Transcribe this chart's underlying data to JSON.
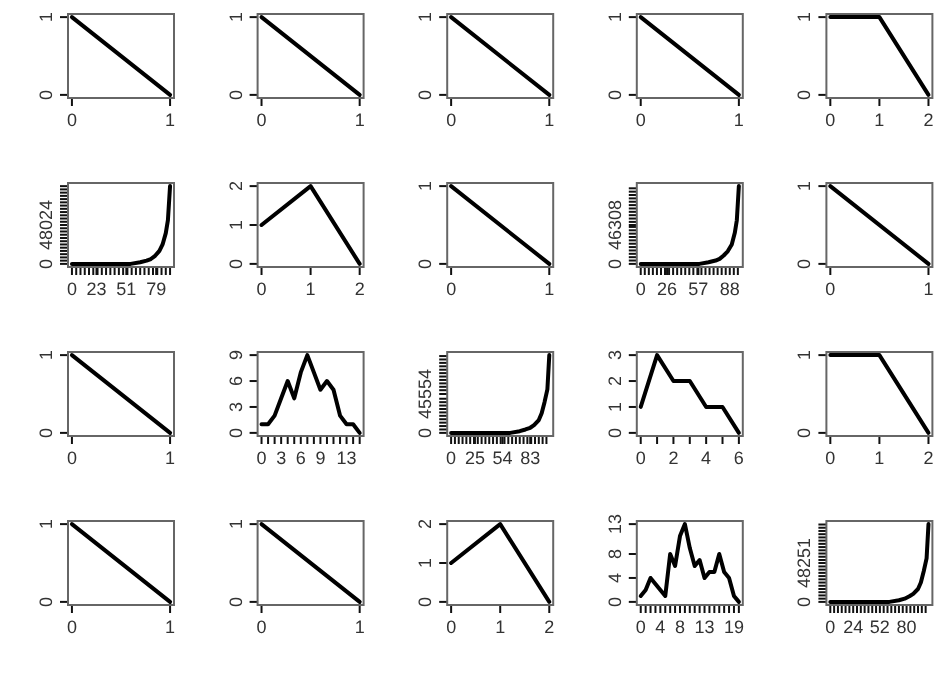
{
  "chart_data": [
    {
      "type": "line",
      "x": [
        0,
        1
      ],
      "values": [
        1,
        0
      ],
      "color": "#000000",
      "xlim": [
        -0.04,
        1.04
      ],
      "ylim": [
        -0.04,
        1.04
      ],
      "xticks": [
        0,
        1
      ],
      "yticks": [
        0,
        1
      ]
    },
    {
      "type": "line",
      "x": [
        0,
        1
      ],
      "values": [
        1,
        0
      ],
      "color": "#000000",
      "xlim": [
        -0.04,
        1.04
      ],
      "ylim": [
        -0.04,
        1.04
      ],
      "xticks": [
        0,
        1
      ],
      "yticks": [
        0,
        1
      ]
    },
    {
      "type": "line",
      "x": [
        0,
        1
      ],
      "values": [
        1,
        0
      ],
      "color": "#000000",
      "xlim": [
        -0.04,
        1.04
      ],
      "ylim": [
        -0.04,
        1.04
      ],
      "xticks": [
        0,
        1
      ],
      "yticks": [
        0,
        1
      ]
    },
    {
      "type": "line",
      "x": [
        0,
        1
      ],
      "values": [
        1,
        0
      ],
      "color": "#000000",
      "xlim": [
        -0.04,
        1.04
      ],
      "ylim": [
        -0.04,
        1.04
      ],
      "xticks": [
        0,
        1
      ],
      "yticks": [
        0,
        1
      ]
    },
    {
      "type": "line",
      "x": [
        0,
        1,
        2
      ],
      "values": [
        1,
        1,
        0
      ],
      "color": "#000000",
      "xlim": [
        -0.08,
        2.08
      ],
      "ylim": [
        -0.04,
        1.04
      ],
      "xticks": [
        0,
        1,
        2
      ],
      "yticks": [
        0,
        1
      ]
    },
    {
      "type": "line",
      "x": [
        0,
        46,
        55,
        64,
        70,
        74,
        78,
        82,
        85,
        88,
        90,
        92
      ],
      "values": [
        0,
        0,
        0,
        2000,
        4000,
        6000,
        10000,
        16000,
        24000,
        38000,
        54000,
        96048
      ],
      "color": "#000000",
      "xlim": [
        -3.7,
        95.7
      ],
      "ylim": [
        -3842,
        99890
      ],
      "xticks": [
        0,
        {
          "value": 4,
          "label": null
        },
        {
          "value": 8,
          "label": null
        },
        {
          "value": 12,
          "label": null
        },
        {
          "value": 16,
          "label": null
        },
        {
          "value": 20,
          "label": null
        },
        23,
        {
          "value": 24,
          "label": null
        },
        {
          "value": 28,
          "label": null
        },
        {
          "value": 32,
          "label": null
        },
        {
          "value": 36,
          "label": null
        },
        {
          "value": 40,
          "label": null
        },
        {
          "value": 44,
          "label": null
        },
        {
          "value": 48,
          "label": null
        },
        51,
        {
          "value": 52,
          "label": null
        },
        {
          "value": 56,
          "label": null
        },
        {
          "value": 60,
          "label": null
        },
        {
          "value": 64,
          "label": null
        },
        {
          "value": 68,
          "label": null
        },
        {
          "value": 72,
          "label": null
        },
        {
          "value": 76,
          "label": null
        },
        79,
        {
          "value": 80,
          "label": null
        },
        {
          "value": 84,
          "label": null
        },
        {
          "value": 88,
          "label": null
        },
        {
          "value": 92,
          "label": null
        }
      ],
      "yticks": [
        0,
        {
          "value": 4000,
          "label": null
        },
        {
          "value": 8000,
          "label": null
        },
        {
          "value": 12000,
          "label": null
        },
        {
          "value": 16000,
          "label": null
        },
        {
          "value": 20000,
          "label": null
        },
        {
          "value": 24000,
          "label": null
        },
        {
          "value": 28000,
          "label": null
        },
        {
          "value": 32000,
          "label": null
        },
        {
          "value": 36000,
          "label": null
        },
        {
          "value": 40000,
          "label": null
        },
        {
          "value": 44000,
          "label": null
        },
        48024,
        {
          "value": 52000,
          "label": null
        },
        {
          "value": 56000,
          "label": null
        },
        {
          "value": 60000,
          "label": null
        },
        {
          "value": 64000,
          "label": null
        },
        {
          "value": 68000,
          "label": null
        },
        {
          "value": 72000,
          "label": null
        },
        {
          "value": 76000,
          "label": null
        },
        {
          "value": 80000,
          "label": null
        },
        {
          "value": 84000,
          "label": null
        },
        {
          "value": 88000,
          "label": null
        },
        {
          "value": 92000,
          "label": null
        },
        {
          "value": 96000,
          "label": null
        }
      ]
    },
    {
      "type": "line",
      "x": [
        0,
        1,
        2
      ],
      "values": [
        1,
        2,
        0
      ],
      "color": "#000000",
      "xlim": [
        -0.08,
        2.08
      ],
      "ylim": [
        -0.08,
        2.08
      ],
      "xticks": [
        0,
        1,
        2
      ],
      "yticks": [
        0,
        1,
        2
      ]
    },
    {
      "type": "line",
      "x": [
        0,
        1
      ],
      "values": [
        1,
        0
      ],
      "color": "#000000",
      "xlim": [
        -0.04,
        1.04
      ],
      "ylim": [
        -0.04,
        1.04
      ],
      "xticks": [
        0,
        1
      ],
      "yticks": [
        0,
        1
      ]
    },
    {
      "type": "line",
      "x": [
        0,
        48,
        58,
        67,
        74,
        78,
        82,
        86,
        90,
        93,
        95,
        97
      ],
      "values": [
        0,
        0,
        0,
        2000,
        4000,
        6000,
        10000,
        15000,
        23000,
        37000,
        52000,
        92616
      ],
      "color": "#000000",
      "xlim": [
        -3.9,
        100.9
      ],
      "ylim": [
        -3705,
        96321
      ],
      "xticks": [
        0,
        {
          "value": 4,
          "label": null
        },
        {
          "value": 8,
          "label": null
        },
        {
          "value": 12,
          "label": null
        },
        {
          "value": 16,
          "label": null
        },
        {
          "value": 20,
          "label": null
        },
        {
          "value": 24,
          "label": null
        },
        26,
        {
          "value": 28,
          "label": null
        },
        {
          "value": 32,
          "label": null
        },
        {
          "value": 36,
          "label": null
        },
        {
          "value": 40,
          "label": null
        },
        {
          "value": 44,
          "label": null
        },
        {
          "value": 48,
          "label": null
        },
        {
          "value": 52,
          "label": null
        },
        {
          "value": 56,
          "label": null
        },
        57,
        {
          "value": 60,
          "label": null
        },
        {
          "value": 64,
          "label": null
        },
        {
          "value": 68,
          "label": null
        },
        {
          "value": 72,
          "label": null
        },
        {
          "value": 76,
          "label": null
        },
        {
          "value": 80,
          "label": null
        },
        {
          "value": 84,
          "label": null
        },
        88,
        {
          "value": 92,
          "label": null
        },
        {
          "value": 96,
          "label": null
        }
      ],
      "yticks": [
        0,
        {
          "value": 4000,
          "label": null
        },
        {
          "value": 8000,
          "label": null
        },
        {
          "value": 12000,
          "label": null
        },
        {
          "value": 16000,
          "label": null
        },
        {
          "value": 20000,
          "label": null
        },
        {
          "value": 24000,
          "label": null
        },
        {
          "value": 28000,
          "label": null
        },
        {
          "value": 32000,
          "label": null
        },
        {
          "value": 36000,
          "label": null
        },
        {
          "value": 40000,
          "label": null
        },
        {
          "value": 44000,
          "label": null
        },
        46308,
        {
          "value": 50000,
          "label": null
        },
        {
          "value": 54000,
          "label": null
        },
        {
          "value": 58000,
          "label": null
        },
        {
          "value": 62000,
          "label": null
        },
        {
          "value": 66000,
          "label": null
        },
        {
          "value": 70000,
          "label": null
        },
        {
          "value": 74000,
          "label": null
        },
        {
          "value": 78000,
          "label": null
        },
        {
          "value": 82000,
          "label": null
        },
        {
          "value": 86000,
          "label": null
        },
        {
          "value": 90000,
          "label": null
        }
      ]
    },
    {
      "type": "line",
      "x": [
        0,
        1
      ],
      "values": [
        1,
        0
      ],
      "color": "#000000",
      "xlim": [
        -0.04,
        1.04
      ],
      "ylim": [
        -0.04,
        1.04
      ],
      "xticks": [
        0,
        1
      ],
      "yticks": [
        0,
        1
      ]
    },
    {
      "type": "line",
      "x": [
        0,
        1
      ],
      "values": [
        1,
        0
      ],
      "color": "#000000",
      "xlim": [
        -0.04,
        1.04
      ],
      "ylim": [
        -0.04,
        1.04
      ],
      "xticks": [
        0,
        1
      ],
      "yticks": [
        0,
        1
      ]
    },
    {
      "type": "line",
      "x": [
        0,
        1,
        2,
        3,
        4,
        5,
        6,
        7,
        8,
        9,
        10,
        11,
        12,
        13,
        14,
        15
      ],
      "values": [
        1,
        1,
        2,
        4,
        6,
        4,
        7,
        9,
        7,
        5,
        6,
        5,
        2,
        1,
        1,
        0
      ],
      "color": "#000000",
      "xlim": [
        -0.6,
        15.6
      ],
      "ylim": [
        -0.36,
        9.36
      ],
      "xticks": [
        0,
        {
          "value": 1,
          "label": null
        },
        {
          "value": 2,
          "label": null
        },
        3,
        {
          "value": 4,
          "label": null
        },
        {
          "value": 5,
          "label": null
        },
        6,
        {
          "value": 7,
          "label": null
        },
        {
          "value": 8,
          "label": null
        },
        9,
        {
          "value": 10,
          "label": null
        },
        {
          "value": 11,
          "label": null
        },
        {
          "value": 12,
          "label": null
        },
        13,
        {
          "value": 14,
          "label": null
        },
        {
          "value": 15,
          "label": null
        }
      ],
      "yticks": [
        0,
        3,
        6,
        9
      ]
    },
    {
      "type": "line",
      "x": [
        0,
        52,
        62,
        72,
        78,
        83,
        87,
        92,
        95,
        98,
        101,
        103
      ],
      "values": [
        0,
        0,
        0,
        2000,
        4000,
        6000,
        9000,
        15000,
        23000,
        36000,
        51000,
        91108
      ],
      "color": "#000000",
      "xlim": [
        -4.1,
        107.1
      ],
      "ylim": [
        -3644,
        94752
      ],
      "xticks": [
        0,
        {
          "value": 4,
          "label": null
        },
        {
          "value": 8,
          "label": null
        },
        {
          "value": 12,
          "label": null
        },
        {
          "value": 16,
          "label": null
        },
        {
          "value": 20,
          "label": null
        },
        {
          "value": 24,
          "label": null
        },
        25,
        {
          "value": 28,
          "label": null
        },
        {
          "value": 32,
          "label": null
        },
        {
          "value": 36,
          "label": null
        },
        {
          "value": 40,
          "label": null
        },
        {
          "value": 44,
          "label": null
        },
        {
          "value": 48,
          "label": null
        },
        {
          "value": 52,
          "label": null
        },
        54,
        {
          "value": 56,
          "label": null
        },
        {
          "value": 60,
          "label": null
        },
        {
          "value": 64,
          "label": null
        },
        {
          "value": 68,
          "label": null
        },
        {
          "value": 72,
          "label": null
        },
        {
          "value": 76,
          "label": null
        },
        {
          "value": 80,
          "label": null
        },
        83,
        {
          "value": 84,
          "label": null
        },
        {
          "value": 88,
          "label": null
        },
        {
          "value": 92,
          "label": null
        },
        {
          "value": 96,
          "label": null
        },
        {
          "value": 100,
          "label": null
        }
      ],
      "yticks": [
        0,
        {
          "value": 4000,
          "label": null
        },
        {
          "value": 8000,
          "label": null
        },
        {
          "value": 12000,
          "label": null
        },
        {
          "value": 16000,
          "label": null
        },
        {
          "value": 20000,
          "label": null
        },
        {
          "value": 24000,
          "label": null
        },
        {
          "value": 28000,
          "label": null
        },
        {
          "value": 32000,
          "label": null
        },
        {
          "value": 36000,
          "label": null
        },
        {
          "value": 40000,
          "label": null
        },
        45554,
        {
          "value": 50000,
          "label": null
        },
        {
          "value": 54000,
          "label": null
        },
        {
          "value": 58000,
          "label": null
        },
        {
          "value": 62000,
          "label": null
        },
        {
          "value": 66000,
          "label": null
        },
        {
          "value": 70000,
          "label": null
        },
        {
          "value": 74000,
          "label": null
        },
        {
          "value": 78000,
          "label": null
        },
        {
          "value": 82000,
          "label": null
        },
        {
          "value": 86000,
          "label": null
        },
        {
          "value": 90000,
          "label": null
        }
      ]
    },
    {
      "type": "line",
      "x": [
        0,
        1,
        2,
        3,
        4,
        5,
        6
      ],
      "values": [
        1,
        3,
        2,
        2,
        1,
        1,
        0
      ],
      "color": "#000000",
      "xlim": [
        -0.24,
        6.24
      ],
      "ylim": [
        -0.12,
        3.12
      ],
      "xticks": [
        0,
        {
          "value": 1,
          "label": null
        },
        2,
        {
          "value": 3,
          "label": null
        },
        4,
        {
          "value": 5,
          "label": null
        },
        6
      ],
      "yticks": [
        0,
        1,
        2,
        3
      ]
    },
    {
      "type": "line",
      "x": [
        0,
        1,
        2
      ],
      "values": [
        1,
        1,
        0
      ],
      "color": "#000000",
      "xlim": [
        -0.08,
        2.08
      ],
      "ylim": [
        -0.04,
        1.04
      ],
      "xticks": [
        0,
        1,
        2
      ],
      "yticks": [
        0,
        1
      ]
    },
    {
      "type": "line",
      "x": [
        0,
        1
      ],
      "values": [
        1,
        0
      ],
      "color": "#000000",
      "xlim": [
        -0.04,
        1.04
      ],
      "ylim": [
        -0.04,
        1.04
      ],
      "xticks": [
        0,
        1
      ],
      "yticks": [
        0,
        1
      ]
    },
    {
      "type": "line",
      "x": [
        0,
        1
      ],
      "values": [
        1,
        0
      ],
      "color": "#000000",
      "xlim": [
        -0.04,
        1.04
      ],
      "ylim": [
        -0.04,
        1.04
      ],
      "xticks": [
        0,
        1
      ],
      "yticks": [
        0,
        1
      ]
    },
    {
      "type": "line",
      "x": [
        0,
        1,
        2
      ],
      "values": [
        1,
        2,
        0
      ],
      "color": "#000000",
      "xlim": [
        -0.08,
        2.08
      ],
      "ylim": [
        -0.08,
        2.08
      ],
      "xticks": [
        0,
        1,
        2
      ],
      "yticks": [
        0,
        1,
        2
      ]
    },
    {
      "type": "line",
      "x": [
        0,
        1,
        2,
        3,
        4,
        5,
        6,
        7,
        8,
        9,
        10,
        11,
        12,
        13,
        14,
        15,
        16,
        17,
        18,
        19,
        20
      ],
      "values": [
        1,
        2,
        4,
        3,
        2,
        1,
        8,
        6,
        11,
        13,
        9,
        6,
        7,
        4,
        5,
        5,
        8,
        5,
        4,
        1,
        0
      ],
      "color": "#000000",
      "xlim": [
        -0.8,
        20.8
      ],
      "ylim": [
        -0.52,
        13.52
      ],
      "xticks": [
        0,
        {
          "value": 1,
          "label": null
        },
        {
          "value": 2,
          "label": null
        },
        {
          "value": 3,
          "label": null
        },
        4,
        {
          "value": 5,
          "label": null
        },
        {
          "value": 6,
          "label": null
        },
        {
          "value": 7,
          "label": null
        },
        8,
        {
          "value": 9,
          "label": null
        },
        {
          "value": 10,
          "label": null
        },
        {
          "value": 11,
          "label": null
        },
        {
          "value": 12,
          "label": null
        },
        13,
        {
          "value": 14,
          "label": null
        },
        {
          "value": 15,
          "label": null
        },
        {
          "value": 16,
          "label": null
        },
        {
          "value": 17,
          "label": null
        },
        {
          "value": 18,
          "label": null
        },
        19,
        {
          "value": 20,
          "label": null
        }
      ],
      "yticks": [
        0,
        4,
        8,
        13
      ]
    },
    {
      "type": "line",
      "x": [
        0,
        52,
        62,
        72,
        78,
        83,
        87,
        92,
        95,
        98,
        101,
        103
      ],
      "values": [
        0,
        0,
        0,
        2000,
        4000,
        7000,
        10000,
        16000,
        24000,
        38000,
        54000,
        96502
      ],
      "color": "#000000",
      "xlim": [
        -4.1,
        107.1
      ],
      "ylim": [
        -3860,
        100362
      ],
      "xticks": [
        0,
        {
          "value": 4,
          "label": null
        },
        {
          "value": 8,
          "label": null
        },
        {
          "value": 12,
          "label": null
        },
        {
          "value": 16,
          "label": null
        },
        {
          "value": 20,
          "label": null
        },
        24,
        {
          "value": 28,
          "label": null
        },
        {
          "value": 32,
          "label": null
        },
        {
          "value": 36,
          "label": null
        },
        {
          "value": 40,
          "label": null
        },
        {
          "value": 44,
          "label": null
        },
        {
          "value": 48,
          "label": null
        },
        52,
        {
          "value": 56,
          "label": null
        },
        {
          "value": 60,
          "label": null
        },
        {
          "value": 64,
          "label": null
        },
        {
          "value": 68,
          "label": null
        },
        {
          "value": 72,
          "label": null
        },
        {
          "value": 76,
          "label": null
        },
        80,
        {
          "value": 84,
          "label": null
        },
        {
          "value": 88,
          "label": null
        },
        {
          "value": 92,
          "label": null
        },
        {
          "value": 96,
          "label": null
        },
        {
          "value": 100,
          "label": null
        }
      ],
      "yticks": [
        0,
        {
          "value": 4000,
          "label": null
        },
        {
          "value": 8000,
          "label": null
        },
        {
          "value": 12000,
          "label": null
        },
        {
          "value": 16000,
          "label": null
        },
        {
          "value": 20000,
          "label": null
        },
        {
          "value": 24000,
          "label": null
        },
        {
          "value": 28000,
          "label": null
        },
        {
          "value": 32000,
          "label": null
        },
        {
          "value": 36000,
          "label": null
        },
        {
          "value": 40000,
          "label": null
        },
        {
          "value": 44000,
          "label": null
        },
        48251,
        {
          "value": 52000,
          "label": null
        },
        {
          "value": 56000,
          "label": null
        },
        {
          "value": 60000,
          "label": null
        },
        {
          "value": 64000,
          "label": null
        },
        {
          "value": 68000,
          "label": null
        },
        {
          "value": 72000,
          "label": null
        },
        {
          "value": 76000,
          "label": null
        },
        {
          "value": 80000,
          "label": null
        },
        {
          "value": 84000,
          "label": null
        },
        {
          "value": 88000,
          "label": null
        },
        {
          "value": 92000,
          "label": null
        },
        {
          "value": 96000,
          "label": null
        }
      ]
    }
  ]
}
